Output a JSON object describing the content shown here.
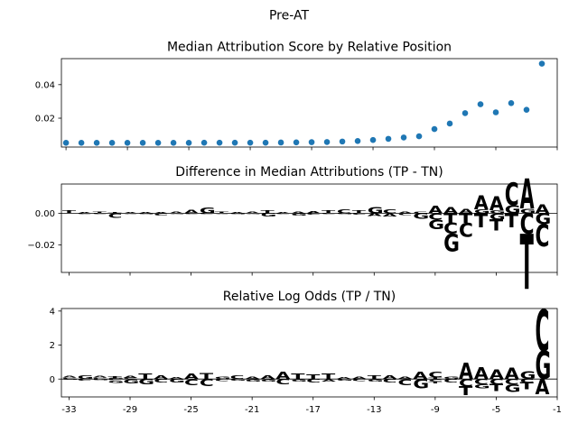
{
  "figure": {
    "suptitle": "Pre-AT"
  },
  "chart_data": [
    {
      "type": "scatter",
      "title": "Median Attribution Score by Relative Position",
      "xlabel": "",
      "ylabel": "",
      "x": [
        -33,
        -32,
        -31,
        -30,
        -29,
        -28,
        -27,
        -26,
        -25,
        -24,
        -23,
        -22,
        -21,
        -20,
        -19,
        -18,
        -17,
        -16,
        -15,
        -14,
        -13,
        -12,
        -11,
        -10,
        -9,
        -8,
        -7,
        -6,
        -5,
        -4,
        -3,
        -2
      ],
      "y": [
        0.0053,
        0.0053,
        0.0053,
        0.0053,
        0.0053,
        0.0053,
        0.0053,
        0.0053,
        0.0053,
        0.0054,
        0.0054,
        0.0054,
        0.0054,
        0.0054,
        0.0055,
        0.0056,
        0.0057,
        0.0058,
        0.0061,
        0.0064,
        0.007,
        0.0077,
        0.0085,
        0.0092,
        0.0135,
        0.0168,
        0.023,
        0.0283,
        0.0235,
        0.029,
        0.025,
        0.0525
      ],
      "xlim": [
        -33.3,
        -1
      ],
      "ylim": [
        0.0028,
        0.0555
      ],
      "yticks": [
        0.02,
        0.04
      ],
      "ytick_labels": [
        "0.02",
        "0.04"
      ],
      "grid": false,
      "marker_color": "#1f77b4"
    },
    {
      "type": "logo",
      "title": "Difference in Median Attributions (TP - TN)",
      "xlabel": "",
      "ylabel": "",
      "xlim": [
        -33.5,
        -1
      ],
      "ylim": [
        -0.0375,
        0.0185
      ],
      "yticks": [
        0.0,
        -0.02
      ],
      "ytick_labels": [
        "0.00",
        "−0.02"
      ],
      "positions": [
        {
          "x": -33,
          "up": [
            [
              "T",
              0.0018
            ]
          ],
          "down": []
        },
        {
          "x": -32,
          "up": [
            [
              "A",
              0.0006
            ]
          ],
          "down": [
            [
              "C",
              0.0006
            ]
          ]
        },
        {
          "x": -31,
          "up": [
            [
              "T",
              0.0012
            ]
          ],
          "down": [
            [
              "C",
              0.0007
            ]
          ]
        },
        {
          "x": -30,
          "up": [
            [
              "T",
              0.0008
            ]
          ],
          "down": [
            [
              "C",
              0.003
            ]
          ]
        },
        {
          "x": -29,
          "up": [
            [
              "A",
              0.0008
            ]
          ],
          "down": [
            [
              "C",
              0.0005
            ]
          ]
        },
        {
          "x": -28,
          "up": [
            [
              "A",
              0.0007
            ]
          ],
          "down": [
            [
              "G",
              0.0006
            ]
          ]
        },
        {
          "x": -27,
          "up": [
            [
              "A",
              0.0006
            ]
          ],
          "down": [
            [
              "C",
              0.0014
            ]
          ]
        },
        {
          "x": -26,
          "up": [
            [
              "A",
              0.0011
            ]
          ],
          "down": [
            [
              "G",
              0.0005
            ]
          ]
        },
        {
          "x": -25,
          "up": [
            [
              "A",
              0.0022
            ]
          ],
          "down": [
            [
              "C",
              0.0006
            ]
          ]
        },
        {
          "x": -24,
          "up": [
            [
              "G",
              0.0038
            ]
          ],
          "down": [
            [
              "C",
              0.0006
            ]
          ]
        },
        {
          "x": -23,
          "up": [
            [
              "T",
              0.0012
            ]
          ],
          "down": [
            [
              "C",
              0.0005
            ]
          ]
        },
        {
          "x": -22,
          "up": [
            [
              "A",
              0.0006
            ]
          ],
          "down": [
            [
              "G",
              0.0007
            ]
          ]
        },
        {
          "x": -21,
          "up": [
            [
              "A",
              0.001
            ]
          ],
          "down": [
            [
              "G",
              0.0005
            ]
          ]
        },
        {
          "x": -20,
          "up": [
            [
              "T",
              0.0018
            ]
          ],
          "down": [
            [
              "G",
              0.0022
            ]
          ]
        },
        {
          "x": -19,
          "up": [
            [
              "A",
              0.0006
            ]
          ],
          "down": [
            [
              "C",
              0.0007
            ]
          ]
        },
        {
          "x": -18,
          "up": [
            [
              "A",
              0.001
            ]
          ],
          "down": [
            [
              "G",
              0.0016
            ]
          ]
        },
        {
          "x": -17,
          "up": [
            [
              "A",
              0.0013
            ]
          ],
          "down": [
            [
              "C",
              0.001
            ]
          ]
        },
        {
          "x": -16,
          "up": [
            [
              "T",
              0.0017
            ]
          ],
          "down": [
            [
              "C",
              0.0006
            ]
          ]
        },
        {
          "x": -15,
          "up": [
            [
              "C",
              0.0027
            ]
          ],
          "down": [
            [
              "G",
              0.0007
            ]
          ]
        },
        {
          "x": -14,
          "up": [
            [
              "T",
              0.0017
            ]
          ],
          "down": [
            [
              "C",
              0.001
            ]
          ]
        },
        {
          "x": -13,
          "up": [
            [
              "G",
              0.004
            ]
          ],
          "down": [
            [
              "A",
              0.0018
            ]
          ]
        },
        {
          "x": -12,
          "up": [
            [
              "C",
              0.0025
            ]
          ],
          "down": [
            [
              "A",
              0.002
            ]
          ]
        },
        {
          "x": -11,
          "up": [
            [
              "A",
              0.0012
            ]
          ],
          "down": [
            [
              "C",
              0.0012
            ]
          ]
        },
        {
          "x": -10,
          "up": [
            [
              "C",
              0.0011
            ]
          ],
          "down": [
            [
              "G",
              0.0035
            ]
          ]
        },
        {
          "x": -9,
          "up": [
            [
              "A",
              0.0047
            ]
          ],
          "down": [
            [
              "C",
              0.004
            ],
            [
              "G",
              0.006
            ]
          ]
        },
        {
          "x": -8,
          "up": [
            [
              "A",
              0.004
            ]
          ],
          "down": [
            [
              "T",
              0.006
            ],
            [
              "C",
              0.007
            ],
            [
              "G",
              0.011
            ]
          ]
        },
        {
          "x": -7,
          "up": [
            [
              "A",
              0.003
            ]
          ],
          "down": [
            [
              "T",
              0.006
            ],
            [
              "C",
              0.009
            ]
          ]
        },
        {
          "x": -6,
          "up": [
            [
              "G",
              0.0025
            ],
            [
              "A",
              0.009
            ]
          ],
          "down": [
            [
              "T",
              0.009
            ]
          ]
        },
        {
          "x": -5,
          "up": [
            [
              "G",
              0.002
            ],
            [
              "A",
              0.009
            ]
          ],
          "down": [
            [
              "G",
              0.004
            ],
            [
              "T",
              0.007
            ]
          ]
        },
        {
          "x": -4,
          "up": [
            [
              "G",
              0.005
            ],
            [
              "C",
              0.0145
            ]
          ],
          "down": [
            [
              "T",
              0.009
            ]
          ]
        },
        {
          "x": -3,
          "up": [
            [
              "G",
              0.003
            ],
            [
              "A",
              0.019
            ]
          ],
          "down": [
            [
              "C",
              0.013
            ],
            [
              "T",
              0.035
            ]
          ]
        },
        {
          "x": -2,
          "up": [
            [
              "A",
              0.0055
            ]
          ],
          "down": [
            [
              "G",
              0.007
            ],
            [
              "C",
              0.014
            ]
          ]
        }
      ]
    },
    {
      "type": "logo",
      "title": "Relative Log Odds (TP / TN)",
      "xlabel": "",
      "ylabel": "",
      "xlim": [
        -33.5,
        -1
      ],
      "ylim": [
        -1.05,
        4.15
      ],
      "yticks": [
        4,
        2,
        0
      ],
      "ytick_labels": [
        "4",
        "2",
        "0"
      ],
      "xticks": [
        -33,
        -29,
        -25,
        -21,
        -17,
        -13,
        -9,
        -5,
        -1
      ],
      "xtick_labels": [
        "-33",
        "-29",
        "-25",
        "-21",
        "-17",
        "-13",
        "-9",
        "-5",
        "-1"
      ],
      "positions": [
        {
          "x": -33,
          "up": [
            [
              "C",
              0.08
            ],
            [
              "A",
              0.1
            ]
          ],
          "down": [
            [
              "G",
              0.05
            ]
          ]
        },
        {
          "x": -32,
          "up": [
            [
              "G",
              0.2
            ]
          ],
          "down": [
            [
              "C",
              0.1
            ]
          ]
        },
        {
          "x": -31,
          "up": [
            [
              "C",
              0.08
            ],
            [
              "A",
              0.1
            ]
          ],
          "down": [
            [
              "G",
              0.08
            ]
          ]
        },
        {
          "x": -30,
          "up": [
            [
              "G",
              0.05
            ],
            [
              "T",
              0.12
            ]
          ],
          "down": [
            [
              "C",
              0.08
            ],
            [
              "G",
              0.15
            ]
          ]
        },
        {
          "x": -29,
          "up": [
            [
              "C",
              0.07
            ],
            [
              "A",
              0.14
            ]
          ],
          "down": [
            [
              "G",
              0.25
            ]
          ]
        },
        {
          "x": -28,
          "up": [
            [
              "T",
              0.3
            ]
          ],
          "down": [
            [
              "G",
              0.3
            ]
          ]
        },
        {
          "x": -27,
          "up": [
            [
              "A",
              0.22
            ]
          ],
          "down": [
            [
              "C",
              0.2
            ]
          ]
        },
        {
          "x": -26,
          "up": [
            [
              "A",
              0.1
            ]
          ],
          "down": [
            [
              "G",
              0.2
            ]
          ]
        },
        {
          "x": -25,
          "up": [
            [
              "A",
              0.32
            ]
          ],
          "down": [
            [
              "C",
              0.35
            ]
          ]
        },
        {
          "x": -24,
          "up": [
            [
              "T",
              0.35
            ]
          ],
          "down": [
            [
              "C",
              0.4
            ]
          ]
        },
        {
          "x": -23,
          "up": [
            [
              "G",
              0.15
            ]
          ],
          "down": [
            [
              "C",
              0.12
            ]
          ]
        },
        {
          "x": -22,
          "up": [
            [
              "C",
              0.2
            ]
          ],
          "down": [
            [
              "G",
              0.1
            ]
          ]
        },
        {
          "x": -21,
          "up": [
            [
              "A",
              0.12
            ]
          ],
          "down": [
            [
              "G",
              0.15
            ]
          ]
        },
        {
          "x": -20,
          "up": [
            [
              "A",
              0.2
            ]
          ],
          "down": [
            [
              "G",
              0.15
            ]
          ]
        },
        {
          "x": -19,
          "up": [
            [
              "A",
              0.4
            ]
          ],
          "down": [
            [
              "C",
              0.3
            ]
          ]
        },
        {
          "x": -18,
          "up": [
            [
              "T",
              0.3
            ]
          ],
          "down": [
            [
              "G",
              0.15
            ]
          ]
        },
        {
          "x": -17,
          "up": [
            [
              "T",
              0.28
            ]
          ],
          "down": [
            [
              "C",
              0.2
            ]
          ]
        },
        {
          "x": -16,
          "up": [
            [
              "T",
              0.3
            ]
          ],
          "down": [
            [
              "A",
              0.15
            ]
          ]
        },
        {
          "x": -15,
          "up": [
            [
              "A",
              0.1
            ]
          ],
          "down": [
            [
              "G",
              0.1
            ]
          ]
        },
        {
          "x": -14,
          "up": [
            [
              "A",
              0.15
            ]
          ],
          "down": [
            [
              "C",
              0.12
            ]
          ]
        },
        {
          "x": -13,
          "up": [
            [
              "T",
              0.2
            ]
          ],
          "down": [
            [
              "G",
              0.15
            ]
          ]
        },
        {
          "x": -12,
          "up": [
            [
              "A",
              0.2
            ]
          ],
          "down": [
            [
              "C",
              0.2
            ]
          ]
        },
        {
          "x": -11,
          "up": [
            [
              "A",
              0.15
            ]
          ],
          "down": [
            [
              "C",
              0.35
            ]
          ]
        },
        {
          "x": -10,
          "up": [
            [
              "A",
              0.4
            ]
          ],
          "down": [
            [
              "G",
              0.55
            ]
          ]
        },
        {
          "x": -9,
          "up": [
            [
              "T",
              0.1
            ],
            [
              "C",
              0.35
            ]
          ],
          "down": [
            [
              "C",
              0.15
            ],
            [
              "T",
              0.1
            ]
          ]
        },
        {
          "x": -8,
          "up": [
            [
              "G",
              0.15
            ]
          ],
          "down": [
            [
              "C",
              0.2
            ]
          ]
        },
        {
          "x": -7,
          "up": [
            [
              "A",
              0.95
            ]
          ],
          "down": [
            [
              "C",
              0.45
            ],
            [
              "T",
              0.5
            ]
          ]
        },
        {
          "x": -6,
          "up": [
            [
              "A",
              0.7
            ]
          ],
          "down": [
            [
              "C",
              0.3
            ],
            [
              "G",
              0.25
            ]
          ]
        },
        {
          "x": -5,
          "up": [
            [
              "A",
              0.55
            ]
          ],
          "down": [
            [
              "C",
              0.3
            ],
            [
              "T",
              0.4
            ]
          ]
        },
        {
          "x": -4,
          "up": [
            [
              "A",
              0.65
            ]
          ],
          "down": [
            [
              "C",
              0.3
            ],
            [
              "G",
              0.45
            ]
          ]
        },
        {
          "x": -3,
          "up": [
            [
              "G",
              0.45
            ]
          ],
          "down": [
            [
              "C",
              0.2
            ],
            [
              "T",
              0.4
            ]
          ]
        },
        {
          "x": -2,
          "up": [
            [
              "G",
              1.65
            ],
            [
              "C",
              2.45
            ]
          ],
          "down": [
            [
              "A",
              0.9
            ]
          ]
        }
      ]
    }
  ]
}
